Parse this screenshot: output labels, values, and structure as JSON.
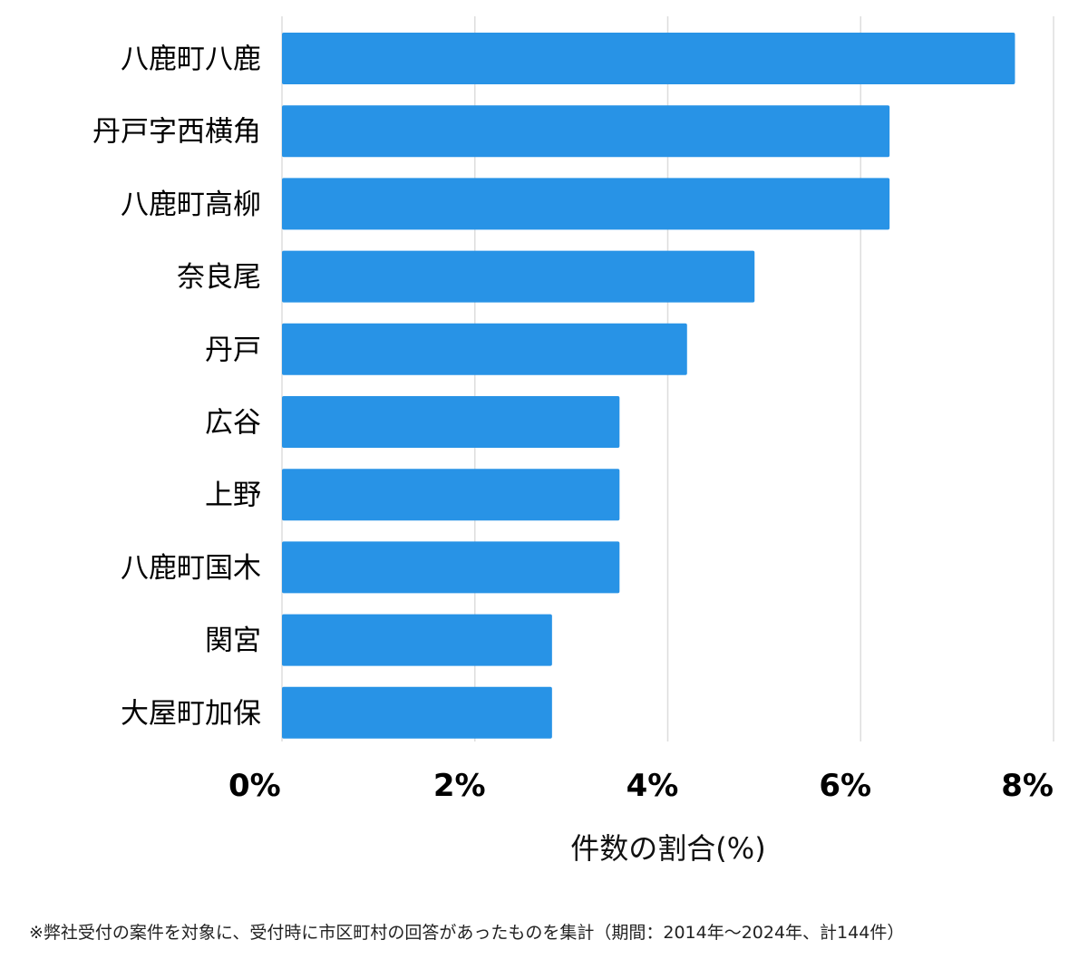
{
  "chart_data": {
    "type": "bar",
    "orientation": "horizontal",
    "categories": [
      "八鹿町八鹿",
      "丹戸字西横角",
      "八鹿町高柳",
      "奈良尾",
      "丹戸",
      "広谷",
      "上野",
      "八鹿町国木",
      "関宮",
      "大屋町加保"
    ],
    "values": [
      7.6,
      6.3,
      6.3,
      4.9,
      4.2,
      3.5,
      3.5,
      3.5,
      2.8,
      2.8
    ],
    "xlabel": "件数の割合(%)",
    "ylabel": "",
    "xlim": [
      0,
      8
    ],
    "x_ticks": [
      0,
      2,
      4,
      6,
      8
    ],
    "x_tick_labels": [
      "0%",
      "2%",
      "4%",
      "6%",
      "8%"
    ],
    "grid": "vertical",
    "bar_color": "#2893e6",
    "grid_color": "#dddddd"
  },
  "footnote": "※弊社受付の案件を対象に、受付時に市区町村の回答があったものを集計（期間：2014年～2024年、計144件）"
}
